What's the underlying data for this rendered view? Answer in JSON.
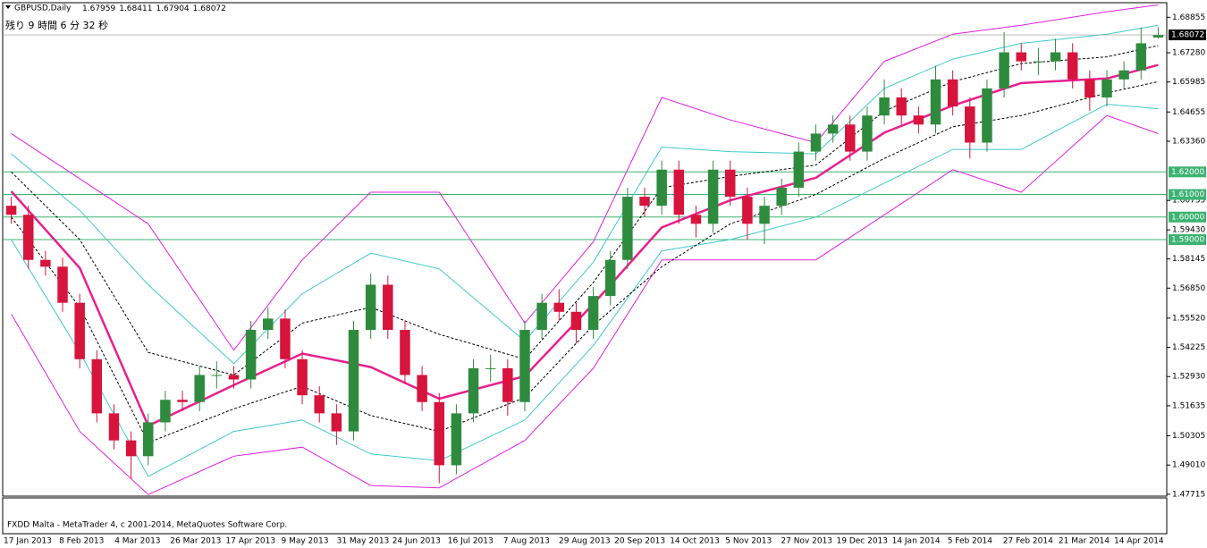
{
  "chart_data": {
    "type": "candlestick",
    "symbol": "GBPUSD,Daily",
    "countdown": "残り 9 時間 6 分 32 秒",
    "footer": "FXDD Malta - MetaTrader 4, c 2001-2014, MetaQuotes Software Corp.",
    "up_color": "#2e8b3e",
    "down_color": "#d6143c",
    "ylim": [
      1.4763,
      1.695
    ],
    "yticks": [
      1.68855,
      {
        "value": 1.6728,
        "label": "1.67280"
      },
      1.65985,
      1.64655,
      {
        "value": 1.6336,
        "label": "1.63360"
      },
      1.60735,
      {
        "value": 1.5943,
        "label": "1.59430"
      },
      1.58145,
      {
        "value": 1.5685,
        "label": "1.56850"
      },
      {
        "value": 1.5552,
        "label": "1.55520"
      },
      1.54225,
      {
        "value": 1.5293,
        "label": "1.52930"
      },
      1.51635,
      1.50305,
      {
        "value": 1.4901,
        "label": "1.49010"
      },
      1.47715
    ],
    "levels": [
      {
        "value": 1.62,
        "label": "1.62000"
      },
      {
        "value": 1.61,
        "label": "1.61000"
      },
      {
        "value": 1.6,
        "label": "1.60000"
      },
      {
        "value": 1.59,
        "label": "1.59000"
      }
    ],
    "level_color": "#3cb371",
    "date_labels": [
      "17 Jan 2013",
      "8 Feb 2013",
      "4 Mar 2013",
      "26 Mar 2013",
      "17 Apr 2013",
      "9 May 2013",
      "31 May 2013",
      "24 Jun 2013",
      "16 Jul 2013",
      "7 Aug 2013",
      "29 Aug 2013",
      "20 Sep 2013",
      "14 Oct 2013",
      "5 Nov 2013",
      "27 Nov 2013",
      "19 Dec 2013",
      "14 Jan 2014",
      "5 Feb 2014",
      "27 Feb 2014",
      "21 Mar 2014",
      "14 Apr 2014"
    ],
    "open": [
      1.605,
      1.601,
      1.581,
      1.578,
      1.562,
      1.537,
      1.513,
      1.501,
      1.494,
      1.509,
      1.519,
      1.518,
      1.53,
      1.53,
      1.528,
      1.55,
      1.555,
      1.537,
      1.521,
      1.513,
      1.505,
      1.55,
      1.57,
      1.55,
      1.53,
      1.518,
      1.49,
      1.513,
      1.533,
      1.533,
      1.518,
      1.55,
      1.562,
      1.558,
      1.55,
      1.565,
      1.581,
      1.609,
      1.605,
      1.621,
      1.601,
      1.597,
      1.621,
      1.609,
      1.597,
      1.605,
      1.613,
      1.629,
      1.637,
      1.641,
      1.629,
      1.645,
      1.653,
      1.645,
      1.641,
      1.661,
      1.649,
      1.633,
      1.657,
      1.673,
      1.669,
      1.669,
      1.673,
      1.661,
      1.653,
      1.661,
      1.665,
      1.67959
    ],
    "high": [
      1.609,
      1.605,
      1.585,
      1.582,
      1.566,
      1.541,
      1.517,
      1.505,
      1.513,
      1.523,
      1.523,
      1.534,
      1.536,
      1.534,
      1.554,
      1.56,
      1.559,
      1.541,
      1.525,
      1.517,
      1.554,
      1.575,
      1.574,
      1.554,
      1.534,
      1.522,
      1.517,
      1.537,
      1.539,
      1.537,
      1.554,
      1.566,
      1.568,
      1.562,
      1.569,
      1.585,
      1.613,
      1.613,
      1.625,
      1.625,
      1.605,
      1.625,
      1.625,
      1.613,
      1.609,
      1.617,
      1.633,
      1.641,
      1.645,
      1.645,
      1.649,
      1.661,
      1.657,
      1.649,
      1.667,
      1.665,
      1.653,
      1.661,
      1.682,
      1.677,
      1.675,
      1.679,
      1.677,
      1.665,
      1.665,
      1.669,
      1.684,
      1.68411
    ],
    "low": [
      1.597,
      1.577,
      1.574,
      1.558,
      1.533,
      1.509,
      1.497,
      1.484,
      1.49,
      1.505,
      1.514,
      1.514,
      1.524,
      1.524,
      1.524,
      1.546,
      1.533,
      1.517,
      1.509,
      1.499,
      1.501,
      1.546,
      1.546,
      1.526,
      1.514,
      1.482,
      1.486,
      1.509,
      1.527,
      1.512,
      1.514,
      1.546,
      1.554,
      1.544,
      1.546,
      1.561,
      1.577,
      1.6,
      1.601,
      1.597,
      1.591,
      1.593,
      1.605,
      1.59,
      1.588,
      1.601,
      1.609,
      1.625,
      1.633,
      1.625,
      1.625,
      1.641,
      1.641,
      1.637,
      1.637,
      1.645,
      1.626,
      1.629,
      1.653,
      1.665,
      1.663,
      1.665,
      1.657,
      1.647,
      1.649,
      1.657,
      1.661,
      1.67904
    ],
    "close": [
      1.601,
      1.581,
      1.578,
      1.562,
      1.537,
      1.513,
      1.501,
      1.494,
      1.509,
      1.519,
      1.518,
      1.53,
      1.53,
      1.528,
      1.55,
      1.555,
      1.537,
      1.521,
      1.513,
      1.505,
      1.55,
      1.57,
      1.55,
      1.53,
      1.518,
      1.49,
      1.513,
      1.533,
      1.533,
      1.518,
      1.55,
      1.562,
      1.558,
      1.55,
      1.565,
      1.581,
      1.609,
      1.605,
      1.621,
      1.601,
      1.597,
      1.621,
      1.609,
      1.597,
      1.605,
      1.613,
      1.629,
      1.637,
      1.641,
      1.629,
      1.645,
      1.653,
      1.645,
      1.641,
      1.661,
      1.649,
      1.633,
      1.657,
      1.673,
      1.669,
      1.669,
      1.673,
      1.661,
      1.653,
      1.661,
      1.665,
      1.677,
      1.68072
    ],
    "series": [
      {
        "color": "#e020e0",
        "width": 1,
        "dash": false,
        "x": [
          0,
          4,
          8,
          13,
          17,
          21,
          25,
          30,
          34,
          38,
          42,
          47,
          51,
          55,
          59,
          64,
          67
        ],
        "values": [
          1.637,
          1.617,
          1.597,
          1.541,
          1.581,
          1.611,
          1.611,
          1.553,
          1.589,
          1.653,
          1.643,
          1.633,
          1.669,
          1.681,
          1.685,
          1.691,
          1.694
        ]
      },
      {
        "color": "#e020e0",
        "width": 1,
        "dash": false,
        "x": [
          0,
          4,
          8,
          13,
          17,
          21,
          25,
          30,
          34,
          38,
          42,
          47,
          51,
          55,
          59,
          64,
          67
        ],
        "values": [
          1.557,
          1.505,
          1.477,
          1.494,
          1.498,
          1.481,
          1.48,
          1.501,
          1.533,
          1.581,
          1.581,
          1.581,
          1.601,
          1.621,
          1.611,
          1.645,
          1.637
        ]
      },
      {
        "color": "#40c8c8",
        "width": 1,
        "dash": false,
        "x": [
          0,
          4,
          8,
          13,
          17,
          21,
          25,
          30,
          34,
          38,
          42,
          47,
          51,
          55,
          59,
          64,
          67
        ],
        "values": [
          1.628,
          1.603,
          1.57,
          1.535,
          1.566,
          1.584,
          1.577,
          1.545,
          1.58,
          1.631,
          1.629,
          1.628,
          1.657,
          1.67,
          1.677,
          1.681,
          1.685
        ]
      },
      {
        "color": "#40c8c8",
        "width": 1,
        "dash": false,
        "x": [
          0,
          4,
          8,
          13,
          17,
          21,
          25,
          30,
          34,
          38,
          42,
          47,
          51,
          55,
          59,
          64,
          67
        ],
        "values": [
          1.59,
          1.54,
          1.485,
          1.505,
          1.51,
          1.495,
          1.492,
          1.51,
          1.543,
          1.585,
          1.59,
          1.6,
          1.615,
          1.63,
          1.63,
          1.65,
          1.648
        ]
      },
      {
        "color": "#000000",
        "width": 1,
        "dash": true,
        "x": [
          0,
          4,
          8,
          13,
          17,
          21,
          25,
          30,
          34,
          38,
          42,
          47,
          51,
          55,
          59,
          64,
          67
        ],
        "values": [
          1.62,
          1.59,
          1.54,
          1.53,
          1.553,
          1.56,
          1.548,
          1.537,
          1.571,
          1.613,
          1.618,
          1.623,
          1.647,
          1.66,
          1.668,
          1.671,
          1.676
        ]
      },
      {
        "color": "#000000",
        "width": 1,
        "dash": true,
        "x": [
          0,
          4,
          8,
          13,
          17,
          21,
          25,
          30,
          34,
          38,
          42,
          47,
          51,
          55,
          59,
          64,
          67
        ],
        "values": [
          1.6,
          1.56,
          1.5,
          1.515,
          1.525,
          1.512,
          1.505,
          1.52,
          1.552,
          1.578,
          1.597,
          1.61,
          1.626,
          1.64,
          1.645,
          1.655,
          1.66
        ]
      },
      {
        "color": "#e8208f",
        "width": 2.5,
        "dash": false,
        "x": [
          0,
          4,
          8,
          13,
          17,
          21,
          25,
          30,
          34,
          38,
          42,
          47,
          51,
          55,
          59,
          64,
          67
        ],
        "values": [
          1.6114,
          1.5774,
          1.5075,
          1.5255,
          1.5395,
          1.5335,
          1.5195,
          1.5295,
          1.5615,
          1.5954,
          1.6074,
          1.6174,
          1.6374,
          1.6494,
          1.6594,
          1.6614,
          1.6674
        ]
      }
    ]
  }
}
